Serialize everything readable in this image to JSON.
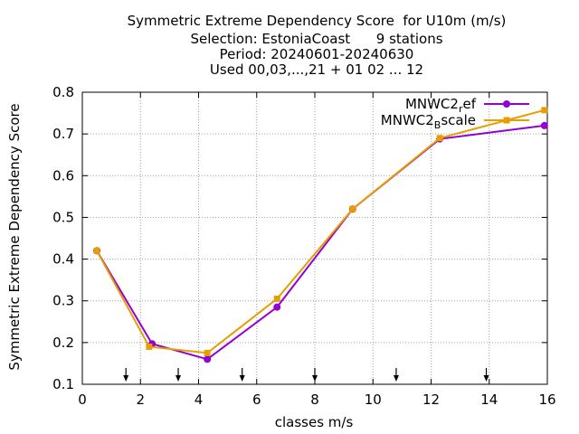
{
  "chart_data": {
    "type": "line",
    "title_lines": [
      "Symmetric Extreme Dependency Score  for U10m (m/s)",
      "Selection: EstoniaCoast      9 stations",
      "Period: 20240601-20240630",
      "Used 00,03,...,21 + 01 02 ... 12"
    ],
    "xlabel": "classes m/s",
    "ylabel": "Symmetric Extreme Dependency Score",
    "xlim": [
      0,
      16
    ],
    "ylim": [
      0.1,
      0.8
    ],
    "xticks": [
      0,
      2,
      4,
      6,
      8,
      10,
      12,
      14,
      16
    ],
    "yticks": [
      0.1,
      0.2,
      0.3,
      0.4,
      0.5,
      0.6,
      0.7,
      0.8
    ],
    "ytick_labels": [
      "0.1",
      "0.2",
      "0.3",
      "0.4",
      "0.5",
      "0.6",
      "0.7",
      "0.8"
    ],
    "grid": true,
    "legend_position": "top-right",
    "class_boundary_arrows": [
      1.5,
      3.3,
      5.5,
      8.0,
      10.8,
      13.9
    ],
    "series": [
      {
        "name": "MNWC2_ref",
        "legend_main": "MNWC2",
        "legend_sub": "r",
        "legend_tail": "ef",
        "color": "#9400d3",
        "marker": "circle",
        "x": [
          0.5,
          2.4,
          4.3,
          6.7,
          9.3,
          12.3,
          15.9
        ],
        "y": [
          0.42,
          0.197,
          0.16,
          0.285,
          0.52,
          0.688,
          0.72
        ]
      },
      {
        "name": "MNWC2_Bscale",
        "legend_main": "MNWC2",
        "legend_sub": "B",
        "legend_tail": "scale",
        "color": "#e69f00",
        "marker": "square",
        "x": [
          0.5,
          2.3,
          4.3,
          6.7,
          9.3,
          12.3,
          15.9
        ],
        "y": [
          0.42,
          0.19,
          0.175,
          0.305,
          0.52,
          0.69,
          0.757
        ]
      }
    ]
  }
}
